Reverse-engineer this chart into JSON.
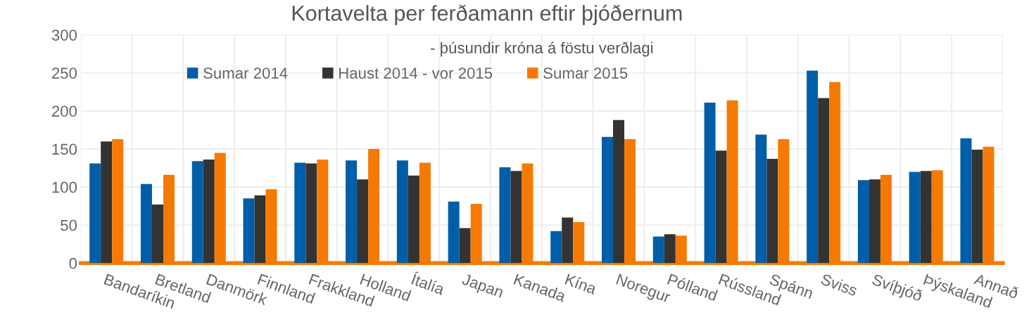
{
  "chart_data": {
    "type": "bar",
    "title": "Kortavelta per ferðamann eftir þjóðernum",
    "subtitle": "- þúsundir króna á föstu verðlagi",
    "categories": [
      "Bandaríkin",
      "Bretland",
      "Danmörk",
      "Finnland",
      "Frakkland",
      "Holland",
      "Ítalía",
      "Japan",
      "Kanada",
      "Kína",
      "Noregur",
      "Pólland",
      "Rússland",
      "Spánn",
      "Sviss",
      "Svíþjóð",
      "Þýskaland",
      "Annað"
    ],
    "series": [
      {
        "name": "Sumar 2014",
        "color": "#005ea8",
        "values": [
          131,
          104,
          134,
          85,
          132,
          135,
          135,
          81,
          126,
          42,
          166,
          35,
          211,
          169,
          253,
          109,
          120,
          164
        ]
      },
      {
        "name": "Haust 2014 - vor 2015",
        "color": "#333333",
        "values": [
          160,
          77,
          136,
          89,
          131,
          110,
          115,
          46,
          121,
          60,
          188,
          38,
          148,
          137,
          217,
          110,
          121,
          149
        ]
      },
      {
        "name": "Sumar 2015",
        "color": "#f77a00",
        "values": [
          163,
          116,
          145,
          97,
          136,
          150,
          132,
          78,
          131,
          54,
          163,
          36,
          214,
          163,
          238,
          116,
          122,
          153
        ]
      }
    ],
    "ylim": [
      0,
      300
    ],
    "yticks": [
      0,
      50,
      100,
      150,
      200,
      250,
      300
    ],
    "grid": true,
    "legend": "top left"
  }
}
